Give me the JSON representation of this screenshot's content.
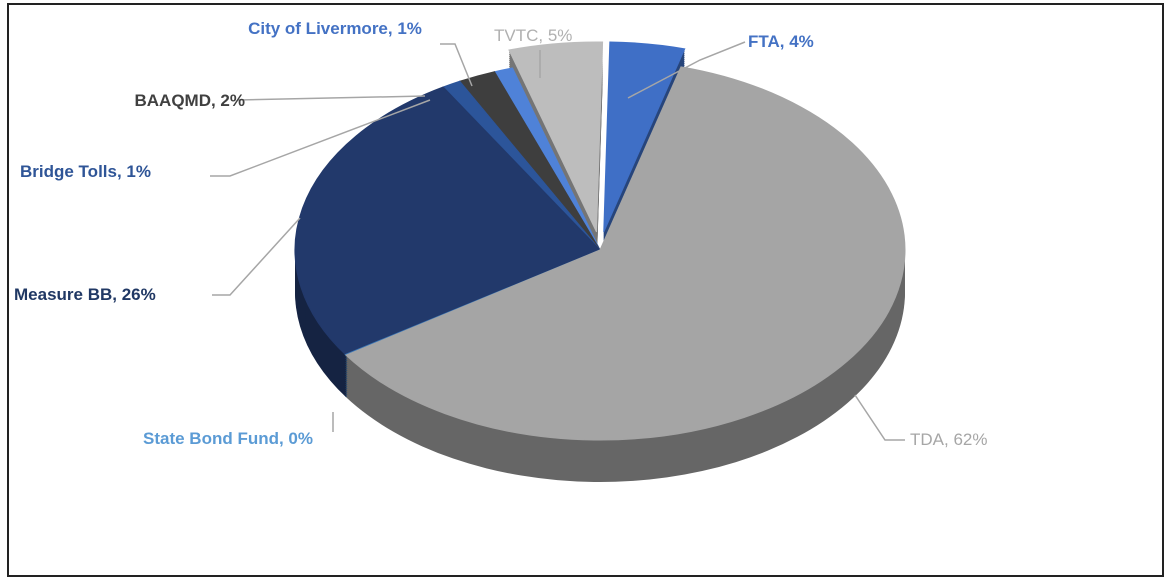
{
  "chart_data": {
    "type": "pie3d",
    "categories": [
      "FTA",
      "TDA",
      "State Bond Fund",
      "Measure BB",
      "Bridge Tolls",
      "BAAQMD",
      "City of Livermore",
      "TVTC"
    ],
    "values": [
      4,
      62,
      0,
      26,
      1,
      2,
      1,
      5
    ],
    "value_labels": [
      "FTA, 4%",
      "TDA, 62%",
      "State Bond Fund, 0%",
      "Measure BB, 26%",
      "Bridge Tolls, 1%",
      "BAAQMD, 2%",
      "City of Livermore, 1%",
      "TVTC, 5%"
    ],
    "colors": [
      "#3f6fc6",
      "#a5a5a5",
      "#3b78b8",
      "#22396b",
      "#2c559a",
      "#3e3e3e",
      "#4f82d8",
      "#bdbdbd"
    ],
    "label_colors": [
      "#4472c4",
      "#a6a6a6",
      "#5b9bd5",
      "#203864",
      "#2f5597",
      "#404040",
      "#4472c4",
      "#b0b0b0"
    ],
    "exploded": [
      true,
      false,
      false,
      false,
      false,
      false,
      false,
      true
    ]
  }
}
